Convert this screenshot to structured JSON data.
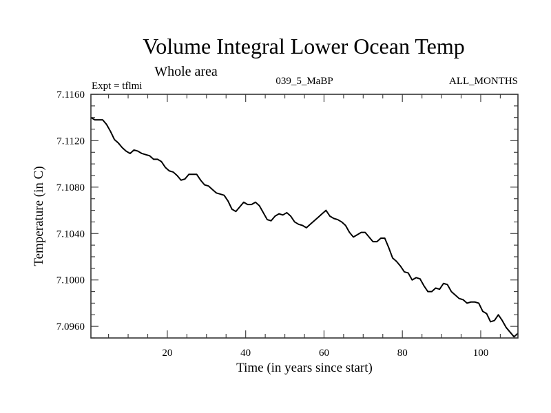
{
  "chart_data": {
    "type": "line",
    "title": "Volume Integral Lower Ocean Temp",
    "subtitle": "Whole area",
    "annotations": {
      "left": "Expt = tflmi",
      "center": "039_5_MaBP",
      "right": "ALL_MONTHS"
    },
    "xlabel": "Time (in years since start)",
    "ylabel": "Temperature (in C)",
    "xlim": [
      0.5,
      109.5
    ],
    "ylim": [
      7.095,
      7.116
    ],
    "xticks": [
      20,
      40,
      60,
      80,
      100
    ],
    "xtick_labels": [
      "20",
      "40",
      "60",
      "80",
      "100"
    ],
    "x_minor_step": 5,
    "yticks": [
      7.096,
      7.1,
      7.104,
      7.108,
      7.112,
      7.116
    ],
    "ytick_labels": [
      "7.0960",
      "7.1000",
      "7.1040",
      "7.1080",
      "7.1120",
      "7.1160"
    ],
    "y_minor_step": 0.001,
    "grid": false,
    "legend": "none",
    "series": [
      {
        "name": "Volume Integral Lower Ocean Temp",
        "color": "#000000",
        "x_start": 0.5,
        "x_step": 1,
        "values": [
          7.114,
          7.1138,
          7.1138,
          7.1138,
          7.1134,
          7.1128,
          7.1121,
          7.1118,
          7.1114,
          7.1111,
          7.1109,
          7.1112,
          7.1111,
          7.1109,
          7.1108,
          7.1107,
          7.1104,
          7.1104,
          7.1102,
          7.1097,
          7.1094,
          7.1093,
          7.109,
          7.1086,
          7.1087,
          7.1091,
          7.1091,
          7.1091,
          7.1086,
          7.1082,
          7.1081,
          7.1078,
          7.1075,
          7.1074,
          7.1073,
          7.1068,
          7.1061,
          7.1059,
          7.1063,
          7.1067,
          7.1065,
          7.1065,
          7.1067,
          7.1064,
          7.1058,
          7.1052,
          7.1051,
          7.1055,
          7.1057,
          7.1056,
          7.1058,
          7.1055,
          7.105,
          7.1048,
          7.1047,
          7.1045,
          7.1048,
          7.1051,
          7.1054,
          7.1057,
          7.106,
          7.1055,
          7.1053,
          7.1052,
          7.105,
          7.1047,
          7.1041,
          7.1037,
          7.1039,
          7.1041,
          7.1041,
          7.1037,
          7.1033,
          7.1033,
          7.1036,
          7.1036,
          7.1028,
          7.1019,
          7.1016,
          7.1012,
          7.1007,
          7.1006,
          7.1,
          7.1002,
          7.1001,
          7.0995,
          7.099,
          7.099,
          7.0993,
          7.0992,
          7.0997,
          7.0996,
          7.099,
          7.0987,
          7.0984,
          7.0983,
          7.098,
          7.0981,
          7.0981,
          7.098,
          7.0973,
          7.0971,
          7.0964,
          7.0965,
          7.097,
          7.0965,
          7.0959,
          7.0955,
          7.0951,
          7.0954
        ]
      }
    ]
  }
}
